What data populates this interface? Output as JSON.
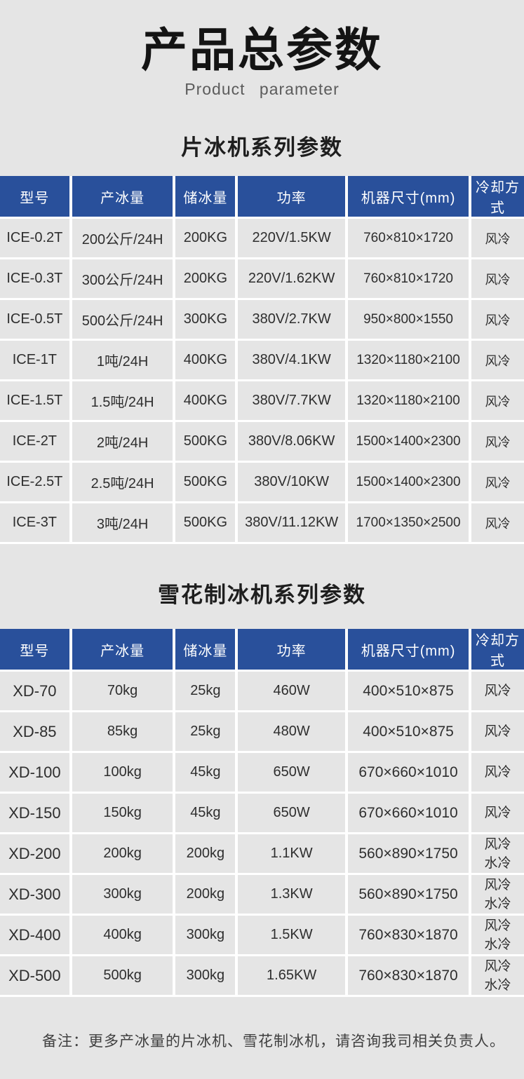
{
  "page": {
    "title": "产品总参数",
    "subtitle": "Product  parameter",
    "note": "备注：更多产冰量的片冰机、雪花制冰机，请咨询我司相关负责人。"
  },
  "colors": {
    "page_bg": "#e5e5e5",
    "header_bg": "#29509b",
    "header_text": "#ffffff",
    "grid": "#ffffff",
    "cell_text": "#2e2e2e"
  },
  "tables": [
    {
      "section_title": "片冰机系列参数",
      "headers": [
        "型号",
        "产冰量",
        "储冰量",
        "功率",
        "机器尺寸(mm)",
        "冷却方式"
      ],
      "rows": [
        [
          "ICE-0.2T",
          "200公斤/24H",
          "200KG",
          "220V/1.5KW",
          "760×810×1720",
          "风冷"
        ],
        [
          "ICE-0.3T",
          "300公斤/24H",
          "200KG",
          "220V/1.62KW",
          "760×810×1720",
          "风冷"
        ],
        [
          "ICE-0.5T",
          "500公斤/24H",
          "300KG",
          "380V/2.7KW",
          "950×800×1550",
          "风冷"
        ],
        [
          "ICE-1T",
          "1吨/24H",
          "400KG",
          "380V/4.1KW",
          "1320×1180×2100",
          "风冷"
        ],
        [
          "ICE-1.5T",
          "1.5吨/24H",
          "400KG",
          "380V/7.7KW",
          "1320×1180×2100",
          "风冷"
        ],
        [
          "ICE-2T",
          "2吨/24H",
          "500KG",
          "380V/8.06KW",
          "1500×1400×2300",
          "风冷"
        ],
        [
          "ICE-2.5T",
          "2.5吨/24H",
          "500KG",
          "380V/10KW",
          "1500×1400×2300",
          "风冷"
        ],
        [
          "ICE-3T",
          "3吨/24H",
          "500KG",
          "380V/11.12KW",
          "1700×1350×2500",
          "风冷"
        ]
      ]
    },
    {
      "section_title": "雪花制冰机系列参数",
      "headers": [
        "型号",
        "产冰量",
        "储冰量",
        "功率",
        "机器尺寸(mm)",
        "冷却方式"
      ],
      "rows": [
        [
          "XD-70",
          "70kg",
          "25kg",
          "460W",
          "400×510×875",
          "风冷"
        ],
        [
          "XD-85",
          "85kg",
          "25kg",
          "480W",
          "400×510×875",
          "风冷"
        ],
        [
          "XD-100",
          "100kg",
          "45kg",
          "650W",
          "670×660×1010",
          "风冷"
        ],
        [
          "XD-150",
          "150kg",
          "45kg",
          "650W",
          "670×660×1010",
          "风冷"
        ],
        [
          "XD-200",
          "200kg",
          "200kg",
          "1.1KW",
          "560×890×1750",
          "风冷\n水冷"
        ],
        [
          "XD-300",
          "300kg",
          "200kg",
          "1.3KW",
          "560×890×1750",
          "风冷\n水冷"
        ],
        [
          "XD-400",
          "400kg",
          "300kg",
          "1.5KW",
          "760×830×1870",
          "风冷\n水冷"
        ],
        [
          "XD-500",
          "500kg",
          "300kg",
          "1.65KW",
          "760×830×1870",
          "风冷\n水冷"
        ]
      ]
    }
  ]
}
